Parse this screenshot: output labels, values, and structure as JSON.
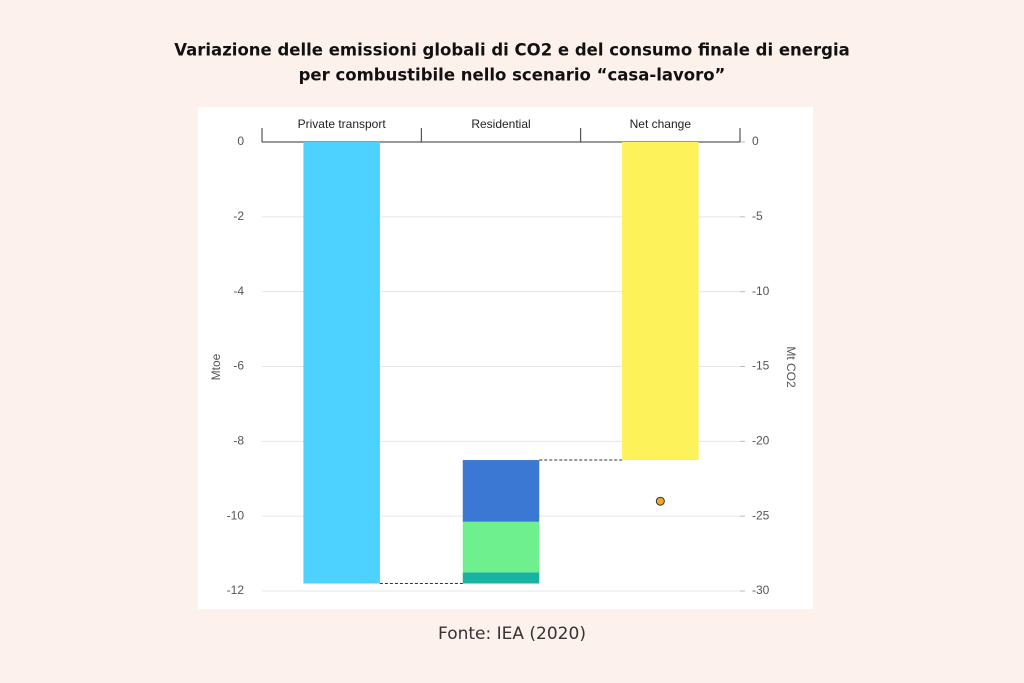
{
  "chart_data": {
    "type": "waterfall",
    "title": [
      "Variazione delle emissioni globali di CO2 e  del consumo finale di energia",
      "per combustibile nello scenario “casa-lavoro”"
    ],
    "source": "Fonte: IEA (2020)",
    "categories": [
      "Private transport",
      "Residential",
      "Net change"
    ],
    "series": [
      {
        "color": "#4dd2ff",
        "values": [
          -11.8,
          null,
          null
        ]
      },
      {
        "color": "#16b3a0",
        "values": [
          null,
          0.3,
          null
        ]
      },
      {
        "color": "#6ef08f",
        "values": [
          null,
          1.35,
          null
        ]
      },
      {
        "color": "#3b78d4",
        "values": [
          null,
          1.65,
          null
        ]
      },
      {
        "color": "#fdf25a",
        "values": [
          null,
          null,
          -8.5
        ],
        "total": true
      },
      {
        "color": "#f5a623",
        "values": [
          null,
          null,
          -24
        ],
        "axis": "y2",
        "marker": "dot"
      }
    ],
    "ylabel": "Mtoe",
    "y2label": "Mt CO2",
    "ylim": [
      -12,
      0
    ],
    "yticks": [
      0,
      -2,
      -4,
      -6,
      -8,
      -10,
      -12
    ],
    "y2lim": [
      -30,
      0
    ],
    "y2ticks": [
      0,
      -5,
      -10,
      -15,
      -20,
      -25,
      -30
    ],
    "grid": true
  }
}
